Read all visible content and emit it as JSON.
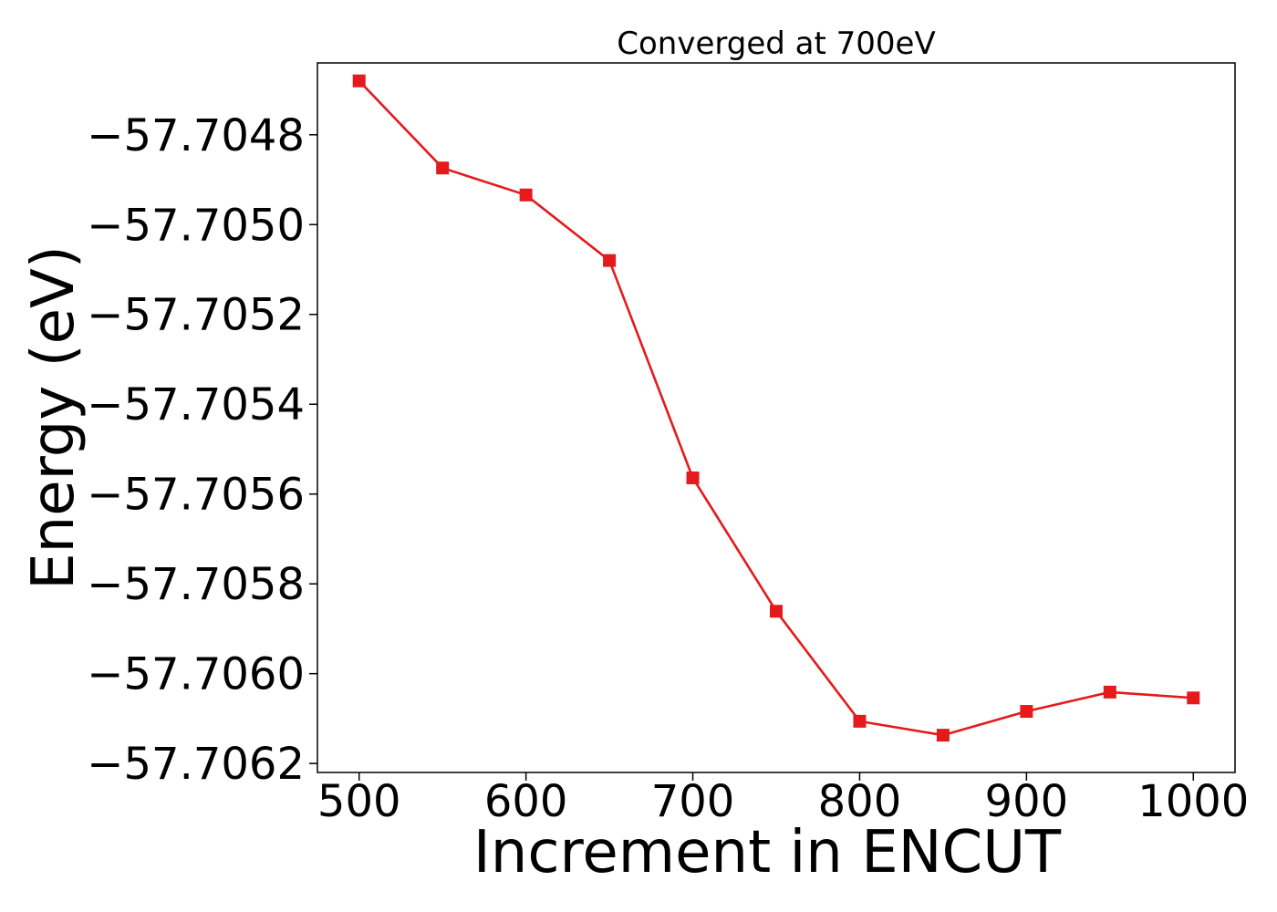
{
  "chart_data": {
    "type": "line",
    "title": "Converged at 700eV",
    "xlabel": "Increment in ENCUT",
    "ylabel": "Energy (eV)",
    "xlim": [
      475,
      1025
    ],
    "ylim": [
      -57.70622,
      -57.70464
    ],
    "xticks": [
      500,
      600,
      700,
      800,
      900,
      1000
    ],
    "xtick_labels": [
      "500",
      "600",
      "700",
      "800",
      "900",
      "1000"
    ],
    "yticks": [
      -57.7062,
      -57.706,
      -57.7058,
      -57.7056,
      -57.7054,
      -57.7052,
      -57.705,
      -57.7048
    ],
    "ytick_labels": [
      "−57.7062",
      "−57.7060",
      "−57.7058",
      "−57.7056",
      "−57.7054",
      "−57.7052",
      "−57.7050",
      "−57.7048"
    ],
    "grid": false,
    "series": [
      {
        "color": "#e41a1c",
        "marker": "square",
        "x": [
          500,
          550,
          600,
          650,
          700,
          750,
          800,
          850,
          900,
          950,
          1000
        ],
        "y": [
          -57.70468,
          -57.704874,
          -57.704934,
          -57.70508,
          -57.705564,
          -57.705861,
          -57.706106,
          -57.706137,
          -57.706084,
          -57.706041,
          -57.706054
        ]
      }
    ]
  }
}
